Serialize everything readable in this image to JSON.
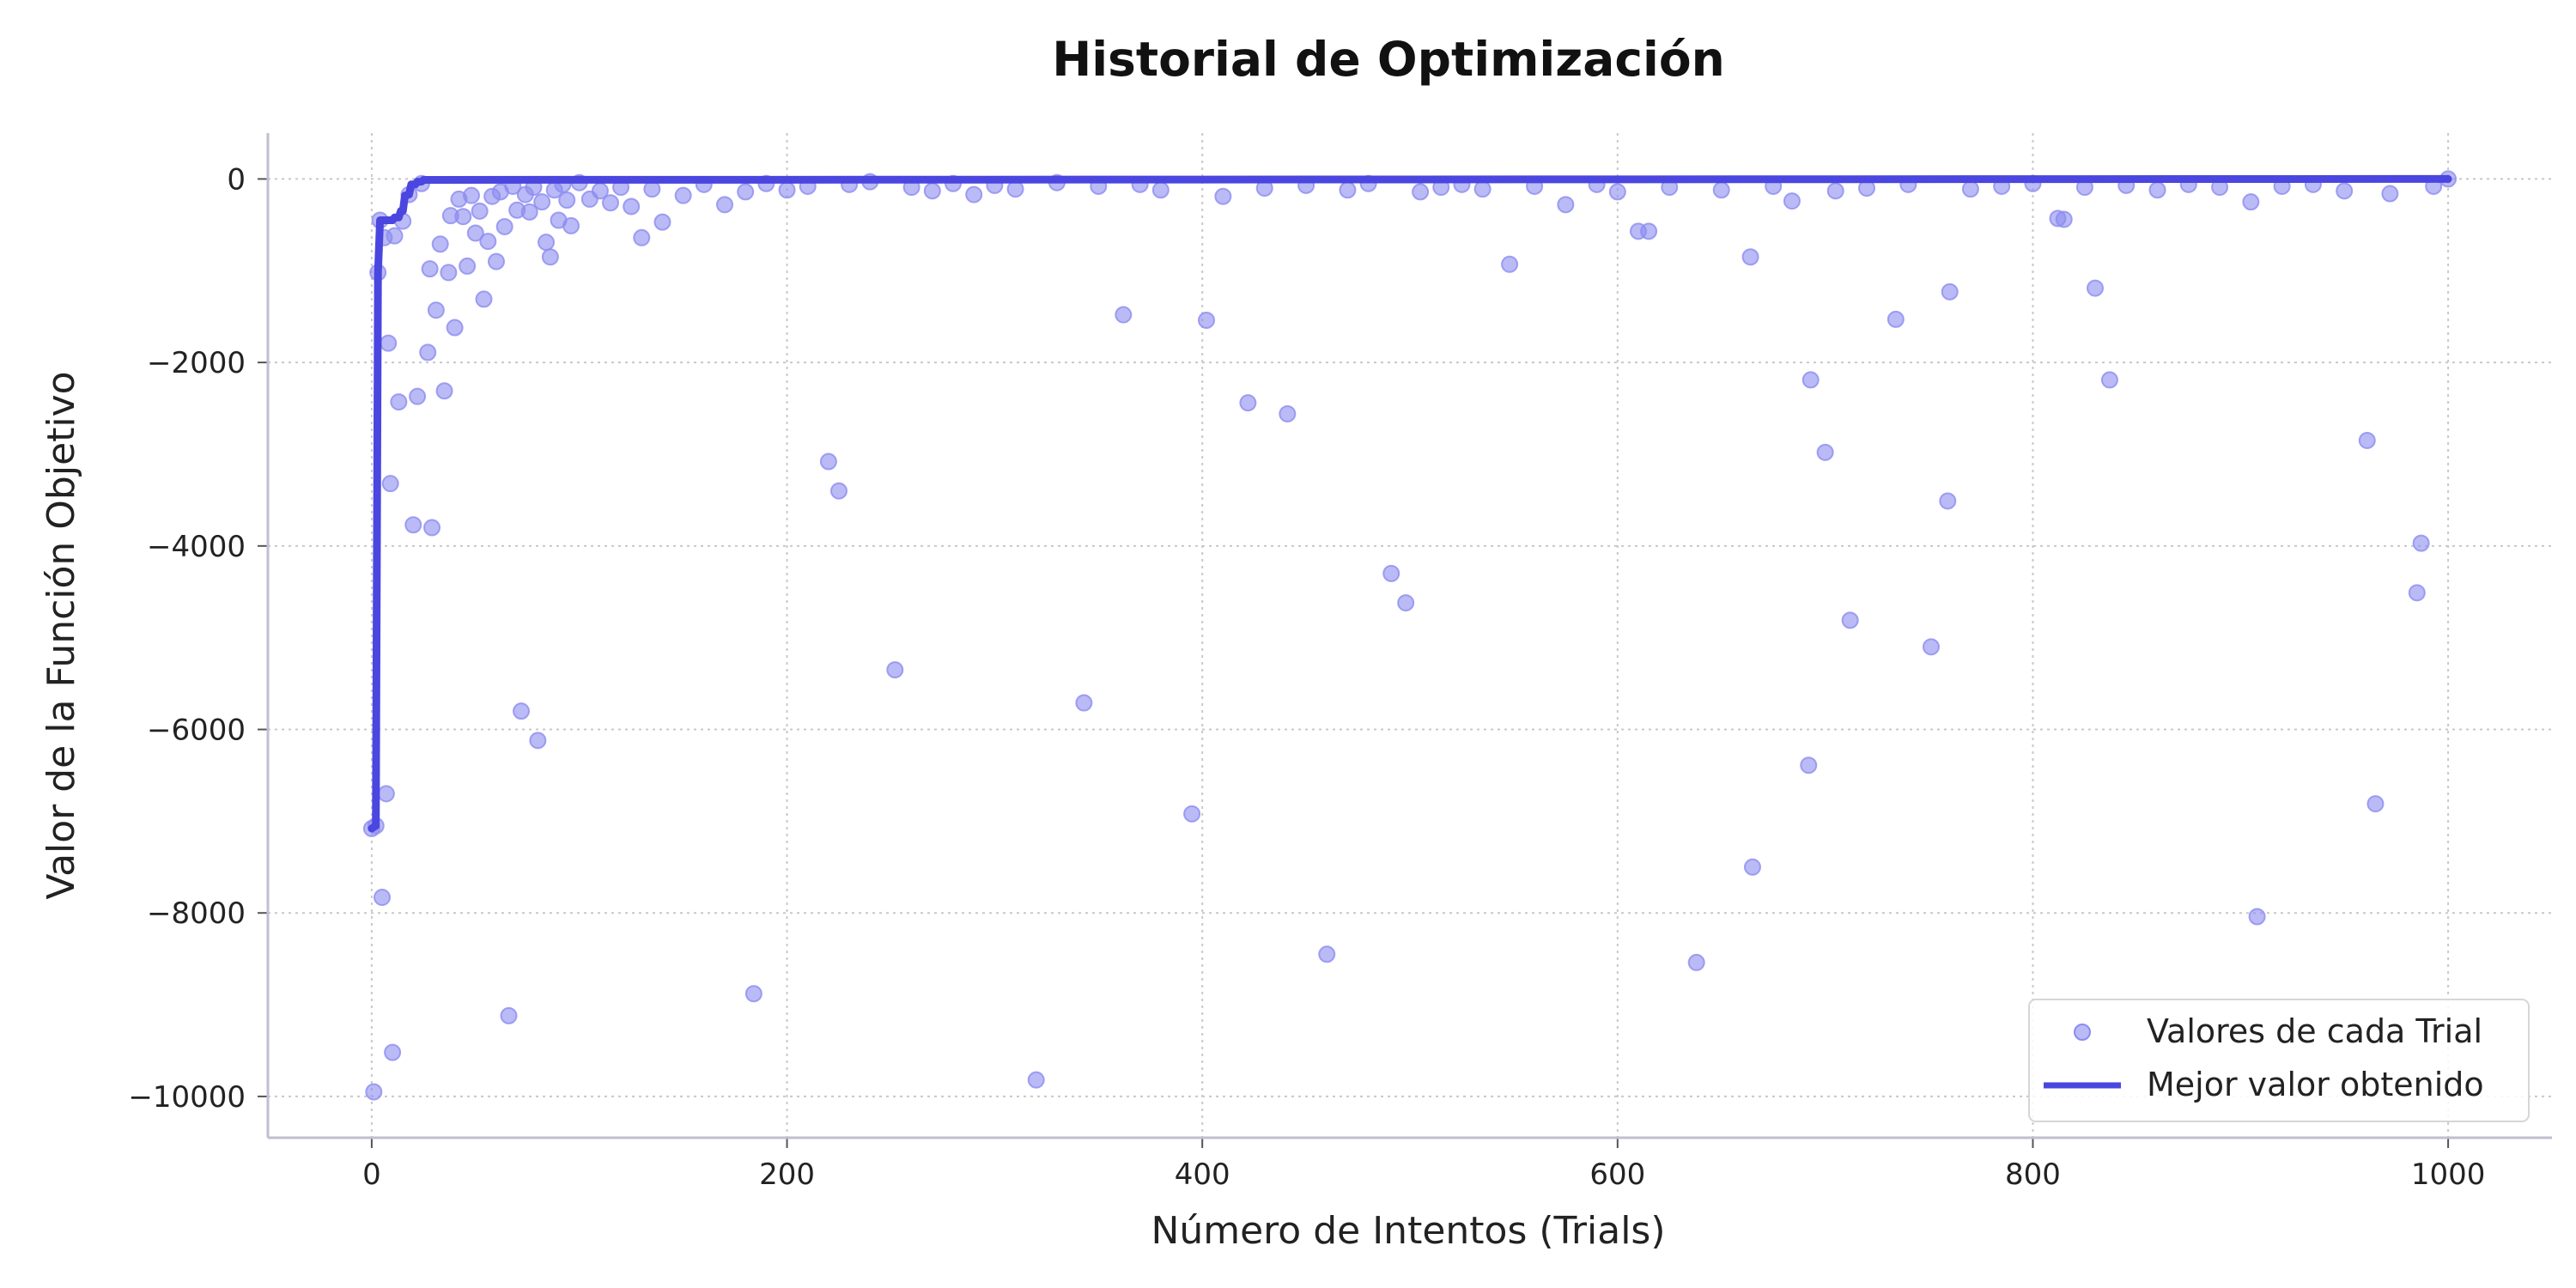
{
  "chart_data": {
    "type": "scatter",
    "title": "Historial de Optimización",
    "xlabel": "Número de Intentos (Trials)",
    "ylabel": "Valor de la Función Objetivo",
    "xlim": [
      -50,
      1050
    ],
    "ylim": [
      -10450,
      500
    ],
    "xticks": [
      0,
      200,
      400,
      600,
      800,
      1000
    ],
    "yticks": [
      0,
      -2000,
      -4000,
      -6000,
      -8000,
      -10000
    ],
    "grid": true,
    "legend_position": "bottom-right",
    "colors": {
      "scatter": "#8c8cf0",
      "line": "#4a46df",
      "grid": "#c8c8c8",
      "axis": "#bfbfcf",
      "text": "#222222"
    },
    "series": [
      {
        "name": "Valores de cada Trial",
        "kind": "scatter",
        "points": [
          [
            0,
            -7080
          ],
          [
            1,
            -9950
          ],
          [
            2,
            -7050
          ],
          [
            3,
            -1020
          ],
          [
            4,
            -450
          ],
          [
            5,
            -7830
          ],
          [
            6,
            -640
          ],
          [
            7,
            -6700
          ],
          [
            8,
            -1790
          ],
          [
            9,
            -3320
          ],
          [
            10,
            -9520
          ],
          [
            11,
            -620
          ],
          [
            13,
            -2430
          ],
          [
            15,
            -460
          ],
          [
            18,
            -170
          ],
          [
            20,
            -3770
          ],
          [
            22,
            -2370
          ],
          [
            24,
            -50
          ],
          [
            27,
            -1890
          ],
          [
            28,
            -980
          ],
          [
            29,
            -3800
          ],
          [
            31,
            -1430
          ],
          [
            33,
            -710
          ],
          [
            35,
            -2310
          ],
          [
            37,
            -1020
          ],
          [
            38,
            -400
          ],
          [
            40,
            -1620
          ],
          [
            42,
            -220
          ],
          [
            44,
            -410
          ],
          [
            46,
            -950
          ],
          [
            48,
            -180
          ],
          [
            50,
            -590
          ],
          [
            52,
            -350
          ],
          [
            54,
            -1310
          ],
          [
            56,
            -680
          ],
          [
            58,
            -190
          ],
          [
            60,
            -900
          ],
          [
            62,
            -140
          ],
          [
            64,
            -520
          ],
          [
            66,
            -9120
          ],
          [
            68,
            -80
          ],
          [
            70,
            -340
          ],
          [
            72,
            -5800
          ],
          [
            74,
            -170
          ],
          [
            76,
            -360
          ],
          [
            78,
            -90
          ],
          [
            80,
            -6120
          ],
          [
            82,
            -250
          ],
          [
            84,
            -690
          ],
          [
            86,
            -850
          ],
          [
            88,
            -120
          ],
          [
            90,
            -450
          ],
          [
            92,
            -60
          ],
          [
            94,
            -230
          ],
          [
            96,
            -510
          ],
          [
            100,
            -40
          ],
          [
            105,
            -220
          ],
          [
            110,
            -130
          ],
          [
            115,
            -260
          ],
          [
            120,
            -90
          ],
          [
            125,
            -300
          ],
          [
            130,
            -640
          ],
          [
            135,
            -110
          ],
          [
            140,
            -470
          ],
          [
            150,
            -180
          ],
          [
            160,
            -60
          ],
          [
            170,
            -280
          ],
          [
            180,
            -140
          ],
          [
            184,
            -8880
          ],
          [
            190,
            -50
          ],
          [
            200,
            -120
          ],
          [
            210,
            -80
          ],
          [
            220,
            -3080
          ],
          [
            225,
            -3400
          ],
          [
            230,
            -60
          ],
          [
            240,
            -30
          ],
          [
            252,
            -5350
          ],
          [
            260,
            -90
          ],
          [
            270,
            -130
          ],
          [
            280,
            -50
          ],
          [
            290,
            -170
          ],
          [
            300,
            -70
          ],
          [
            310,
            -110
          ],
          [
            320,
            -9820
          ],
          [
            330,
            -40
          ],
          [
            343,
            -5710
          ],
          [
            350,
            -80
          ],
          [
            362,
            -1480
          ],
          [
            370,
            -60
          ],
          [
            380,
            -120
          ],
          [
            395,
            -6920
          ],
          [
            402,
            -1540
          ],
          [
            410,
            -190
          ],
          [
            422,
            -2440
          ],
          [
            430,
            -100
          ],
          [
            441,
            -2560
          ],
          [
            450,
            -70
          ],
          [
            460,
            -8450
          ],
          [
            470,
            -120
          ],
          [
            480,
            -50
          ],
          [
            491,
            -4300
          ],
          [
            498,
            -4620
          ],
          [
            505,
            -140
          ],
          [
            515,
            -90
          ],
          [
            525,
            -60
          ],
          [
            535,
            -110
          ],
          [
            548,
            -930
          ],
          [
            560,
            -80
          ],
          [
            575,
            -280
          ],
          [
            590,
            -60
          ],
          [
            600,
            -140
          ],
          [
            610,
            -570
          ],
          [
            615,
            -570
          ],
          [
            625,
            -90
          ],
          [
            638,
            -8540
          ],
          [
            650,
            -120
          ],
          [
            664,
            -850
          ],
          [
            665,
            -7500
          ],
          [
            675,
            -80
          ],
          [
            684,
            -240
          ],
          [
            692,
            -6390
          ],
          [
            693,
            -2190
          ],
          [
            700,
            -2980
          ],
          [
            705,
            -130
          ],
          [
            712,
            -4810
          ],
          [
            720,
            -100
          ],
          [
            734,
            -1530
          ],
          [
            740,
            -60
          ],
          [
            751,
            -5100
          ],
          [
            759,
            -3510
          ],
          [
            760,
            -1230
          ],
          [
            770,
            -110
          ],
          [
            785,
            -80
          ],
          [
            800,
            -50
          ],
          [
            812,
            -430
          ],
          [
            815,
            -440
          ],
          [
            825,
            -90
          ],
          [
            830,
            -1190
          ],
          [
            837,
            -2190
          ],
          [
            845,
            -70
          ],
          [
            860,
            -120
          ],
          [
            875,
            -60
          ],
          [
            890,
            -90
          ],
          [
            905,
            -250
          ],
          [
            908,
            -8040
          ],
          [
            920,
            -80
          ],
          [
            935,
            -60
          ],
          [
            950,
            -130
          ],
          [
            961,
            -2850
          ],
          [
            965,
            -6810
          ],
          [
            972,
            -160
          ],
          [
            985,
            -4510
          ],
          [
            987,
            -3970
          ],
          [
            993,
            -80
          ],
          [
            1000,
            0
          ]
        ]
      },
      {
        "name": "Mejor valor obtenido",
        "kind": "line",
        "points": [
          [
            0,
            -7080
          ],
          [
            2,
            -7050
          ],
          [
            3,
            -1020
          ],
          [
            4,
            -450
          ],
          [
            10,
            -450
          ],
          [
            11,
            -420
          ],
          [
            13,
            -420
          ],
          [
            14,
            -350
          ],
          [
            15,
            -350
          ],
          [
            16,
            -180
          ],
          [
            18,
            -170
          ],
          [
            19,
            -60
          ],
          [
            21,
            -60
          ],
          [
            22,
            -30
          ],
          [
            24,
            -30
          ],
          [
            25,
            -10
          ],
          [
            1000,
            0
          ]
        ]
      }
    ]
  }
}
